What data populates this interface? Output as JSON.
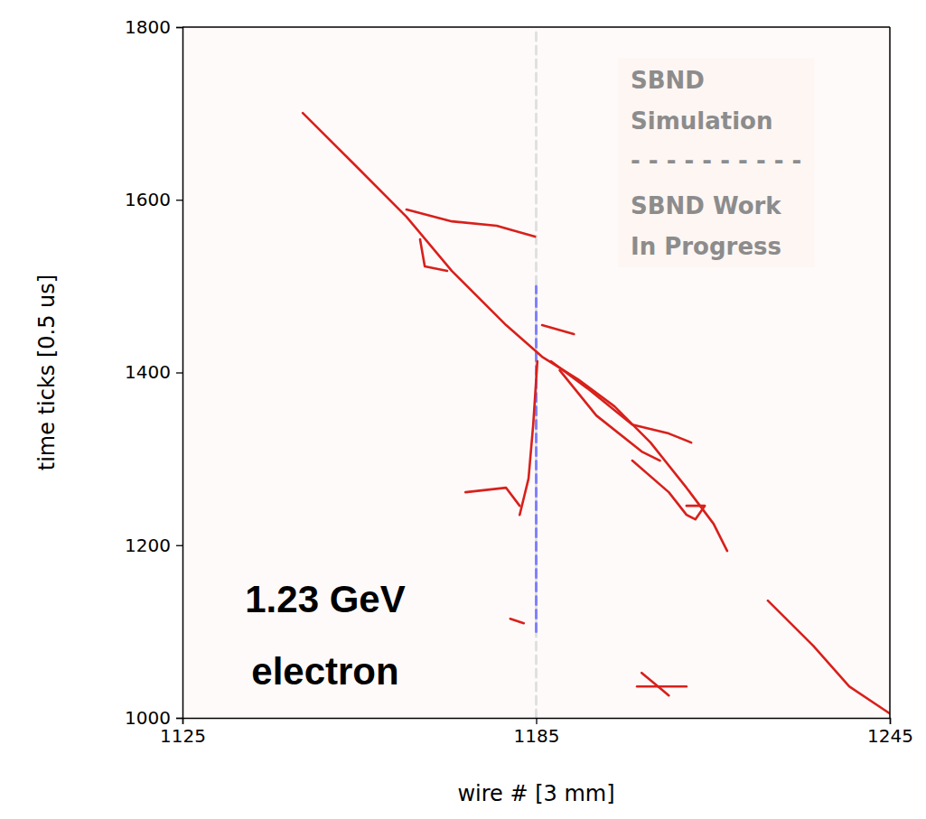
{
  "chart_data": {
    "type": "line",
    "x_label": "wire # [3 mm]",
    "y_label": "time ticks [0.5 us]",
    "xlim": [
      1125,
      1245
    ],
    "xticks": [
      1125,
      1185,
      1245
    ],
    "ylim": [
      1000,
      1800
    ],
    "yticks": [
      1000,
      1200,
      1400,
      1600,
      1800
    ],
    "grid": false,
    "annotation": [
      "1.23 GeV",
      "electron"
    ],
    "watermark": [
      "SBND",
      "Simulation",
      "- - - - - - - - - -",
      "SBND Work",
      "In Progress"
    ],
    "series": [
      {
        "color": "#e0e0e0",
        "line_style": "dashed",
        "x": [
          1185,
          1185
        ],
        "values": [
          1000,
          1800
        ]
      },
      {
        "color": "#8080ff",
        "line_style": "dashed",
        "x": [
          1185,
          1185
        ],
        "values": [
          1100,
          1500
        ]
      },
      {
        "color": "#d8201b",
        "line_style": "solid",
        "x": [
          1145.4,
          1154.6,
          1163.0,
          1170.7,
          1179.9,
          1186.0,
          1192.1,
          1198.3,
          1204.4,
          1210.5,
          1215.1,
          1217.4
        ],
        "values": [
          1700.6,
          1637.9,
          1580.3,
          1517.6,
          1454.8,
          1418.2,
          1392.0,
          1360.7,
          1318.8,
          1266.5,
          1224.7,
          1193.3
        ]
      },
      {
        "color": "#d8201b",
        "line_style": "solid",
        "x": [
          1163.0,
          1170.7,
          1178.3,
          1184.8
        ],
        "values": [
          1588.7,
          1575.0,
          1569.9,
          1557.3
        ]
      },
      {
        "color": "#d8201b",
        "line_style": "solid",
        "x": [
          1165.3,
          1166.1,
          1169.9
        ],
        "values": [
          1554.2,
          1522.8,
          1517.6
        ]
      },
      {
        "color": "#d8201b",
        "line_style": "solid",
        "x": [
          1185.2,
          1184.5,
          1183.7,
          1182.2
        ],
        "values": [
          1413.0,
          1339.7,
          1277.0,
          1235.0
        ]
      },
      {
        "color": "#d8201b",
        "line_style": "solid",
        "x": [
          1173.0,
          1179.9,
          1182.2
        ],
        "values": [
          1261.3,
          1266.5,
          1245.6
        ]
      },
      {
        "color": "#d8201b",
        "line_style": "solid",
        "x": [
          1186.0,
          1191.4
        ],
        "values": [
          1454.8,
          1444.4
        ]
      },
      {
        "color": "#d8201b",
        "line_style": "solid",
        "x": [
          1187.5,
          1193.7,
          1201.3,
          1207.5,
          1211.3
        ],
        "values": [
          1413.0,
          1381.6,
          1339.7,
          1329.3,
          1318.8
        ]
      },
      {
        "color": "#d8201b",
        "line_style": "solid",
        "x": [
          1189.0,
          1195.2,
          1202.9,
          1206.0
        ],
        "values": [
          1402.5,
          1350.2,
          1308.4,
          1297.9
        ]
      },
      {
        "color": "#d8201b",
        "line_style": "solid",
        "x": [
          1201.3,
          1207.5,
          1210.5,
          1212.0,
          1213.6,
          1210.5
        ],
        "values": [
          1298.0,
          1261.3,
          1235.2,
          1229.9,
          1245.6,
          1245.6
        ]
      },
      {
        "color": "#d8201b",
        "line_style": "solid",
        "x": [
          1224.3,
          1232.0,
          1238.1,
          1245.0
        ],
        "values": [
          1135.8,
          1083.5,
          1036.4,
          1005.0
        ]
      },
      {
        "color": "#d8201b",
        "line_style": "solid",
        "x": [
          1180.6,
          1182.9
        ],
        "values": [
          1114.8,
          1109.6
        ]
      },
      {
        "color": "#d8201b",
        "line_style": "solid",
        "x": [
          1202.9,
          1207.5
        ],
        "values": [
          1052.1,
          1026.0
        ]
      },
      {
        "color": "#d8201b",
        "line_style": "solid",
        "x": [
          1202.1,
          1210.5
        ],
        "values": [
          1036.4,
          1036.4
        ]
      }
    ]
  }
}
